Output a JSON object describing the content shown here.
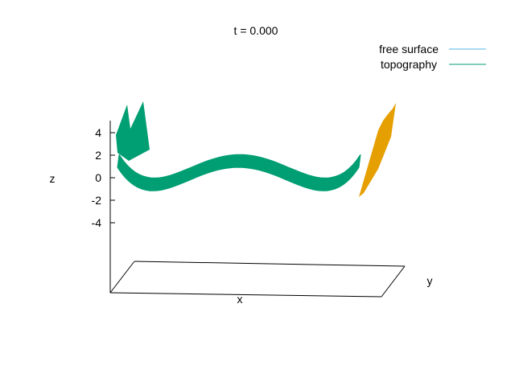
{
  "chart_data": {
    "type": "surface",
    "title": "t = 0.000",
    "xlabel": "x",
    "ylabel": "y",
    "zlabel": "z",
    "z_ticks": [
      "4",
      "2",
      "0",
      "-2",
      "-4"
    ],
    "z_tick_values": [
      4,
      2,
      0,
      -2,
      -4
    ],
    "zlim": [
      -4,
      4
    ],
    "legend_position": "top-right",
    "series": [
      {
        "name": "free surface",
        "color": "#56b4e9"
      },
      {
        "name": "topography",
        "color": "#009e73"
      }
    ],
    "accent_color": "#e69f00",
    "grid": false
  }
}
